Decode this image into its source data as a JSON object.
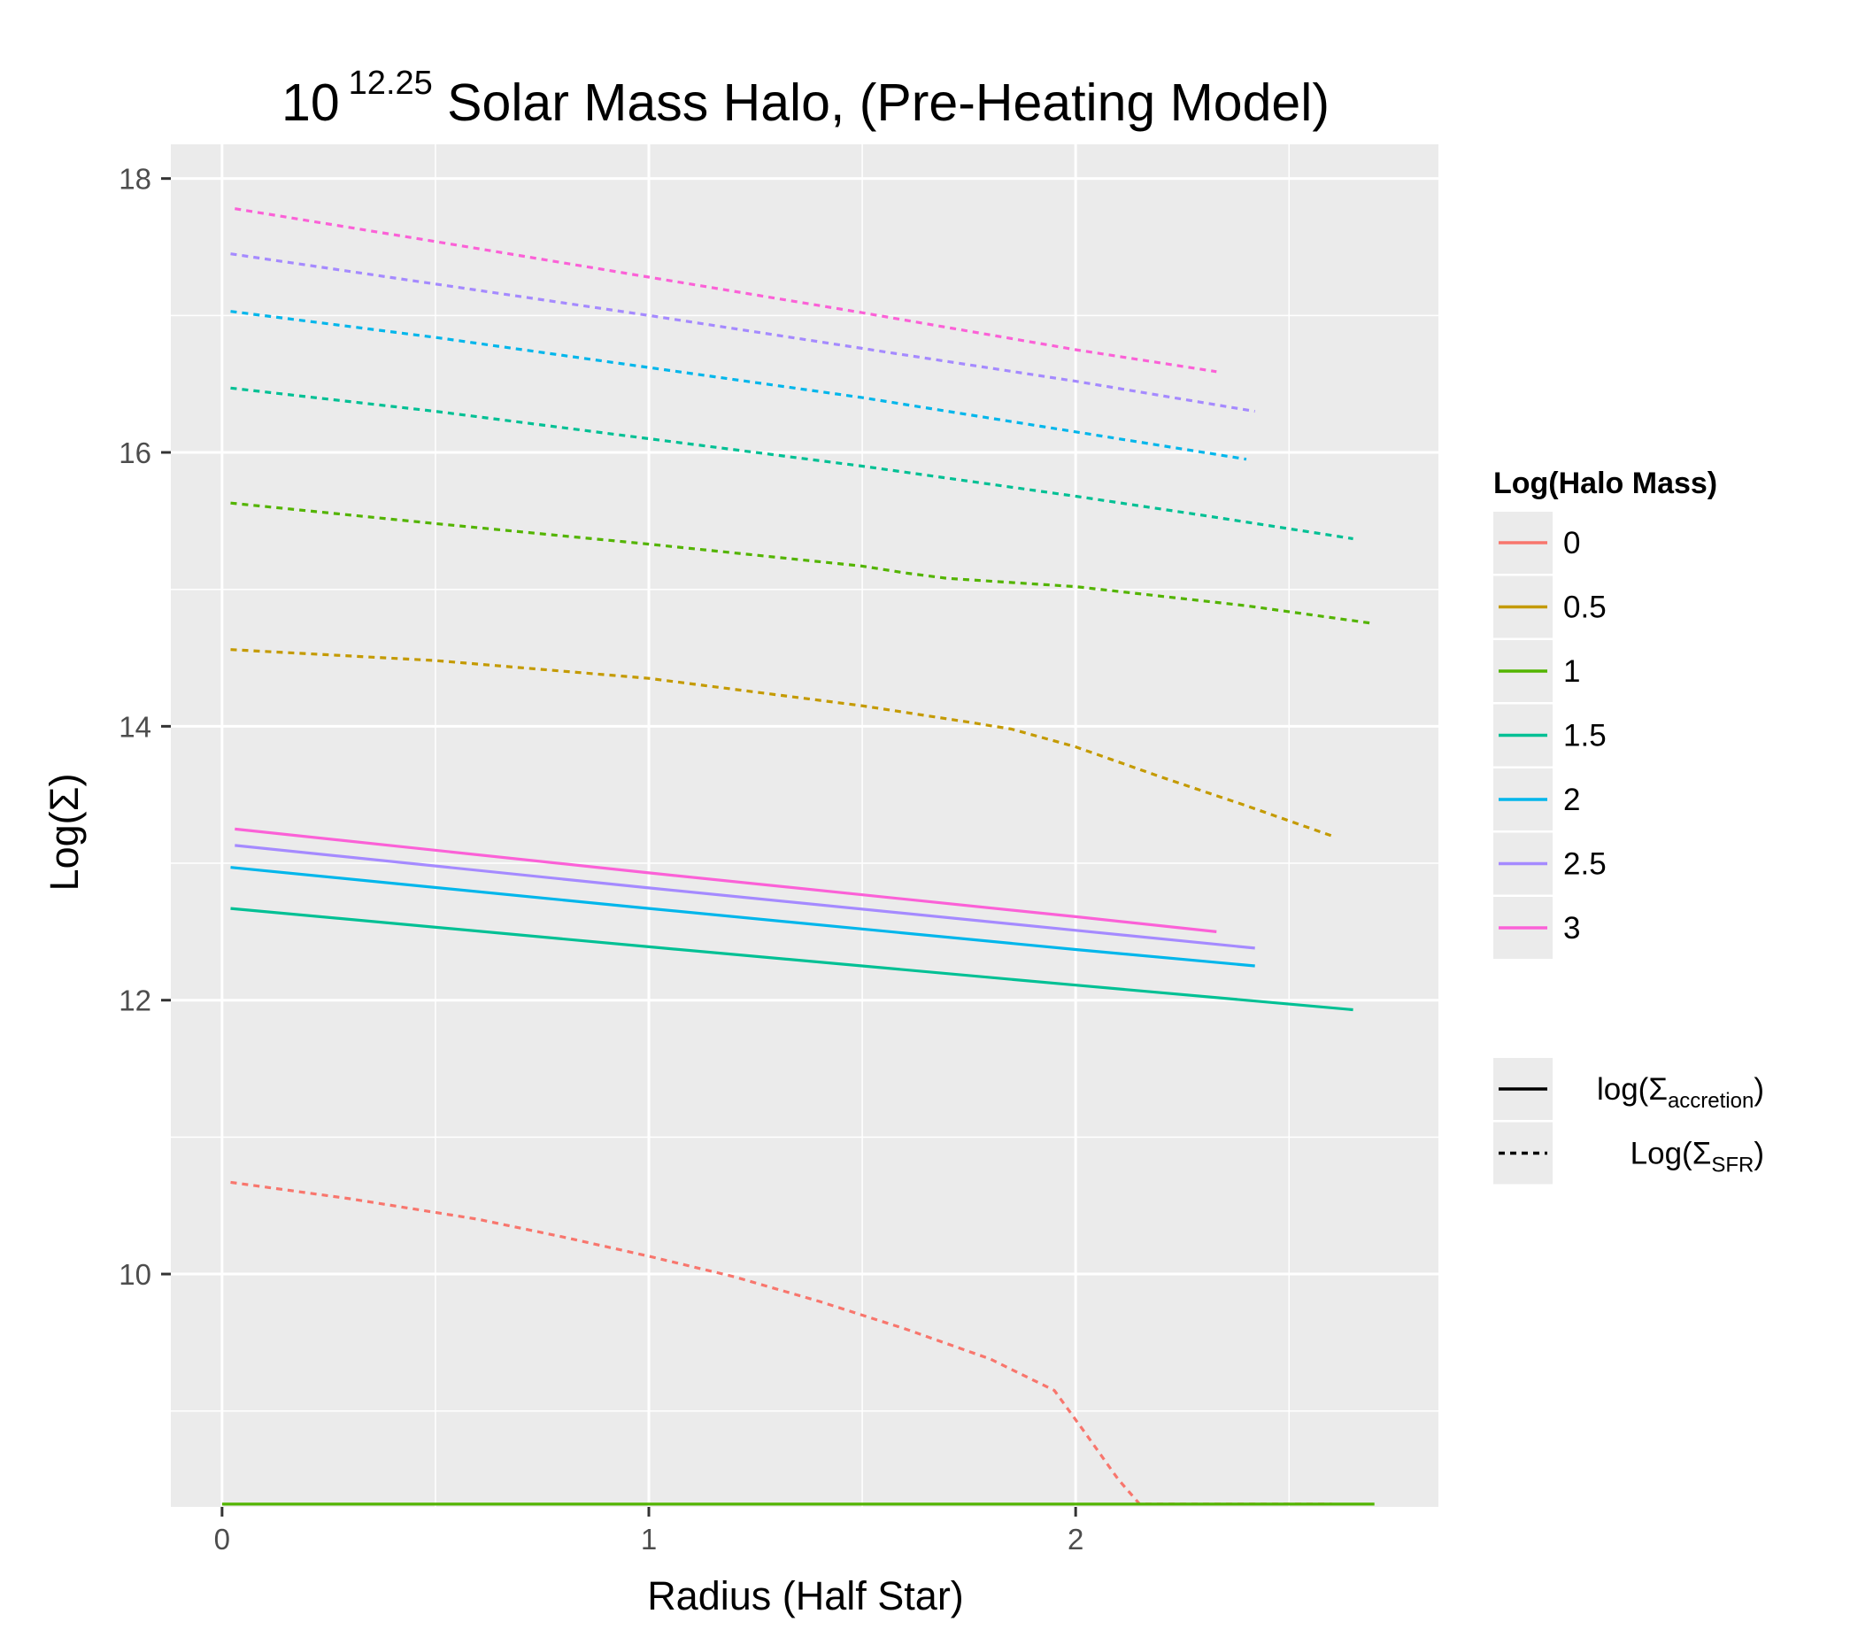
{
  "chart_data": {
    "type": "line",
    "title": {
      "base": "10",
      "superscript": "12.25",
      "rest": " Solar Mass Halo, (Pre-Heating Model)"
    },
    "xlabel": "Radius (Half Star)",
    "ylabel": "Log(Σ)",
    "xlim": [
      -0.12,
      2.85
    ],
    "ylim": [
      8.3,
      18.25
    ],
    "x_ticks": [
      0,
      1,
      2
    ],
    "y_ticks": [
      10,
      12,
      14,
      16,
      18
    ],
    "grid": true,
    "legend_position": "right",
    "colors": {
      "panel_bg": "#ebebeb",
      "grid": "#ffffff"
    },
    "legend_color": {
      "title": "Log(Halo Mass)",
      "entries": [
        {
          "label": "0",
          "color": "#F8766D"
        },
        {
          "label": "0.5",
          "color": "#C49A00"
        },
        {
          "label": "1",
          "color": "#53B400"
        },
        {
          "label": "1.5",
          "color": "#00C094"
        },
        {
          "label": "2",
          "color": "#00B6EB"
        },
        {
          "label": "2.5",
          "color": "#A58AFF"
        },
        {
          "label": "3",
          "color": "#FB61D7"
        }
      ]
    },
    "legend_linetype": {
      "entries": [
        {
          "base": "log(Σ",
          "sub": "accretion",
          "close": ")",
          "dash": "solid"
        },
        {
          "base": "Log(Σ",
          "sub": "SFR",
          "close": ")",
          "dash": "dotted"
        }
      ]
    },
    "series": [
      {
        "group": "0",
        "type": "Log(Σ_SFR)",
        "color": "#F8766D",
        "dash": "dotted",
        "x": [
          0.02,
          0.3,
          0.6,
          0.8,
          1.0,
          1.2,
          1.4,
          1.6,
          1.8,
          1.95,
          2.02,
          2.1,
          2.15,
          2.3,
          2.6
        ],
        "y": [
          10.67,
          10.55,
          10.4,
          10.27,
          10.13,
          9.98,
          9.8,
          9.6,
          9.38,
          9.15,
          8.85,
          8.5,
          8.32,
          8.32,
          8.32
        ]
      },
      {
        "group": "1",
        "type": "Log(Σ_SFR)",
        "color": "#53B400",
        "dash": "solid",
        "x": [
          0.0,
          2.7
        ],
        "y": [
          8.32,
          8.32
        ]
      },
      {
        "group": "0.5",
        "type": "Log(Σ_SFR)",
        "color": "#C49A00",
        "dash": "dotted",
        "x": [
          0.02,
          0.5,
          1.0,
          1.5,
          1.75,
          1.85,
          2.0,
          2.2,
          2.4,
          2.6
        ],
        "y": [
          14.56,
          14.48,
          14.35,
          14.15,
          14.03,
          13.98,
          13.85,
          13.63,
          13.42,
          13.2
        ]
      },
      {
        "group": "1",
        "type": "Log(Σ_SFR)",
        "color": "#53B400",
        "dash": "dotted",
        "x": [
          0.02,
          0.5,
          1.0,
          1.5,
          1.6,
          1.7,
          2.0,
          2.4,
          2.7
        ],
        "y": [
          15.63,
          15.48,
          15.33,
          15.17,
          15.12,
          15.08,
          15.02,
          14.88,
          14.75
        ]
      },
      {
        "group": "1.5",
        "type": "Log(Σ_SFR)",
        "color": "#00C094",
        "dash": "dotted",
        "x": [
          0.02,
          0.5,
          1.0,
          1.5,
          2.0,
          2.3,
          2.65
        ],
        "y": [
          16.47,
          16.3,
          16.1,
          15.9,
          15.68,
          15.54,
          15.37
        ]
      },
      {
        "group": "2",
        "type": "Log(Σ_SFR)",
        "color": "#00B6EB",
        "dash": "dotted",
        "x": [
          0.02,
          0.5,
          1.0,
          1.5,
          2.0,
          2.4
        ],
        "y": [
          17.03,
          16.84,
          16.62,
          16.4,
          16.15,
          15.95
        ]
      },
      {
        "group": "2.5",
        "type": "Log(Σ_SFR)",
        "color": "#A58AFF",
        "dash": "dotted",
        "x": [
          0.02,
          0.5,
          1.0,
          1.5,
          2.0,
          2.42
        ],
        "y": [
          17.45,
          17.23,
          17.0,
          16.76,
          16.52,
          16.3
        ]
      },
      {
        "group": "3",
        "type": "Log(Σ_SFR)",
        "color": "#FB61D7",
        "dash": "dotted",
        "x": [
          0.03,
          0.5,
          1.0,
          1.5,
          2.0,
          2.33
        ],
        "y": [
          17.78,
          17.54,
          17.28,
          17.02,
          16.75,
          16.59
        ]
      },
      {
        "group": "1.5",
        "type": "log(Σ_accretion)",
        "color": "#00C094",
        "dash": "solid",
        "x": [
          0.02,
          1.0,
          2.0,
          2.65
        ],
        "y": [
          12.67,
          12.39,
          12.11,
          11.93
        ]
      },
      {
        "group": "2",
        "type": "log(Σ_accretion)",
        "color": "#00B6EB",
        "dash": "solid",
        "x": [
          0.02,
          1.0,
          2.0,
          2.42
        ],
        "y": [
          12.97,
          12.67,
          12.37,
          12.25
        ]
      },
      {
        "group": "2.5",
        "type": "log(Σ_accretion)",
        "color": "#A58AFF",
        "dash": "solid",
        "x": [
          0.03,
          1.0,
          2.0,
          2.42
        ],
        "y": [
          13.13,
          12.82,
          12.51,
          12.38
        ]
      },
      {
        "group": "3",
        "type": "log(Σ_accretion)",
        "color": "#FB61D7",
        "dash": "solid",
        "x": [
          0.03,
          1.0,
          2.0,
          2.33
        ],
        "y": [
          13.25,
          12.93,
          12.61,
          12.5
        ]
      }
    ]
  }
}
